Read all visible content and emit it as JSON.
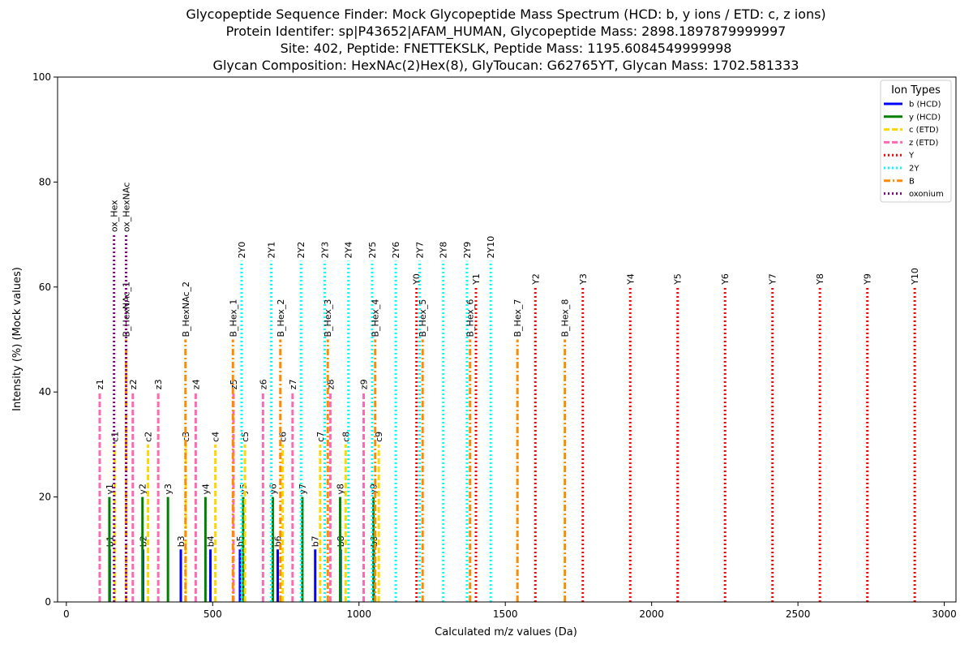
{
  "chart_data": {
    "type": "bar",
    "title_lines": [
      "Glycopeptide Sequence Finder: Mock Glycopeptide Mass Spectrum (HCD: b, y ions / ETD: c, z ions)",
      "Protein Identifer: sp|P43652|AFAM_HUMAN, Glycopeptide Mass: 2898.1897879999997",
      "Site: 402, Peptide: FNETTEKSLK, Peptide Mass: 1195.6084549999998",
      "Glycan Composition: HexNAc(2)Hex(8), GlyToucan: G62765YT, Glycan Mass: 1702.581333"
    ],
    "xlabel": "Calculated m/z values (Da)",
    "ylabel": "Intensity (%) (Mock values)",
    "xlim": [
      -30,
      3040
    ],
    "ylim": [
      0,
      100
    ],
    "xticks": [
      0,
      500,
      1000,
      1500,
      2000,
      2500,
      3000
    ],
    "yticks": [
      0,
      20,
      40,
      60,
      80,
      100
    ],
    "legend": {
      "title": "Ion Types",
      "placement": "top-right",
      "entries": [
        {
          "label": "b (HCD)",
          "color": "#0000ff",
          "style": "solid"
        },
        {
          "label": "y (HCD)",
          "color": "#008000",
          "style": "solid"
        },
        {
          "label": "c (ETD)",
          "color": "#ffd700",
          "style": "dashed"
        },
        {
          "label": "z (ETD)",
          "color": "#ff69b4",
          "style": "dashed"
        },
        {
          "label": "Y",
          "color": "#ff0000",
          "style": "dotted"
        },
        {
          "label": "2Y",
          "color": "#00ffff",
          "style": "dotted"
        },
        {
          "label": "B",
          "color": "#ff8c00",
          "style": "dashdot"
        },
        {
          "label": "oxonium",
          "color": "#800080",
          "style": "dotted"
        }
      ]
    },
    "series": [
      {
        "name": "b (HCD)",
        "color": "#0000ff",
        "style": "solid",
        "intensity": 10,
        "labels": [
          "b1",
          "b2",
          "b3",
          "b4",
          "b5",
          "b6",
          "b7",
          "b8",
          "b9"
        ],
        "x": [
          148.08,
          262.12,
          391.16,
          492.21,
          593.26,
          722.3,
          850.4,
          937.43,
          1050.51
        ]
      },
      {
        "name": "y (HCD)",
        "color": "#008000",
        "style": "solid",
        "intensity": 20,
        "labels": [
          "y1",
          "y2",
          "y3",
          "y4",
          "y5",
          "y6",
          "y7",
          "y8",
          "y9"
        ],
        "x": [
          147.11,
          260.2,
          347.23,
          475.32,
          604.37,
          705.41,
          806.46,
          935.5,
          1049.55
        ]
      },
      {
        "name": "c (ETD)",
        "color": "#ffd700",
        "style": "dashed",
        "intensity": 30,
        "labels": [
          "c1",
          "c2",
          "c3",
          "c4",
          "c5",
          "c6",
          "c7",
          "c8",
          "c9"
        ],
        "x": [
          165.1,
          279.15,
          408.19,
          509.24,
          610.29,
          739.33,
          867.42,
          954.46,
          1067.54
        ]
      },
      {
        "name": "z (ETD)",
        "color": "#ff69b4",
        "style": "dashed",
        "intensity": 40,
        "labels": [
          "z1",
          "z2",
          "z3",
          "z4",
          "z5",
          "z6",
          "z7",
          "z8",
          "z9"
        ],
        "x": [
          114.0,
          227.0,
          314.0,
          442.0,
          571.0,
          672.0,
          773.0,
          902.0,
          1016.0
        ]
      },
      {
        "name": "Y",
        "color": "#ff0000",
        "style": "dotted",
        "intensity": 60,
        "labels": [
          "Y0",
          "Y1",
          "Y2",
          "Y3",
          "Y4",
          "Y5",
          "Y6",
          "Y7",
          "Y8",
          "Y9",
          "Y10"
        ],
        "x": [
          1196.6,
          1399.7,
          1602.8,
          1764.8,
          1926.9,
          2088.9,
          2251.0,
          2413.0,
          2575.1,
          2737.1,
          2899.2
        ]
      },
      {
        "name": "2Y",
        "color": "#00ffff",
        "style": "dotted",
        "intensity": 65,
        "labels": [
          "2Y0",
          "2Y1",
          "2Y2",
          "2Y3",
          "2Y4",
          "2Y5",
          "2Y6",
          "2Y7",
          "2Y8",
          "2Y9",
          "2Y10"
        ],
        "x": [
          598.8,
          700.3,
          801.9,
          882.9,
          963.9,
          1045.0,
          1126.0,
          1207.0,
          1288.0,
          1369.0,
          1450.1
        ]
      },
      {
        "name": "B",
        "color": "#ff8c00",
        "style": "dashdot",
        "intensity": 50,
        "labels": [
          "B_HexNAc_1",
          "B_HexNAc_2",
          "B_Hex_1",
          "B_Hex_2",
          "B_Hex_3",
          "B_Hex_4",
          "B_Hex_5",
          "B_Hex_6",
          "B_Hex_7",
          "B_Hex_8"
        ],
        "x": [
          204.09,
          407.17,
          569.22,
          731.27,
          893.33,
          1055.38,
          1217.43,
          1379.48,
          1541.54,
          1703.59
        ]
      },
      {
        "name": "oxonium",
        "color": "#800080",
        "style": "dotted",
        "intensity": 70,
        "labels": [
          "ox_Hex",
          "ox_HexNAc"
        ],
        "x": [
          163.06,
          204.09
        ]
      }
    ]
  }
}
